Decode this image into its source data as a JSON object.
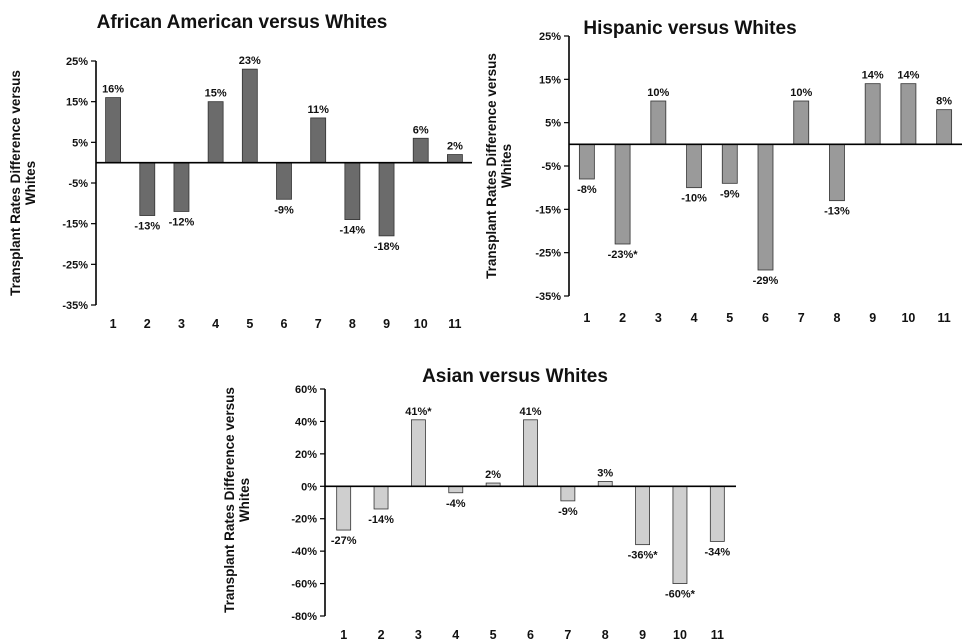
{
  "chart_data": [
    {
      "type": "bar",
      "title": "African American versus Whites",
      "ylabel": [
        "Transplant Rates Difference versus",
        "Whites"
      ],
      "xlabel": "",
      "categories": [
        "1",
        "2",
        "3",
        "4",
        "5",
        "6",
        "7",
        "8",
        "9",
        "10",
        "11"
      ],
      "values": [
        16,
        -13,
        -12,
        15,
        23,
        -9,
        11,
        -14,
        -18,
        6,
        2
      ],
      "labels": [
        "16%",
        "-13%",
        "-12%",
        "15%",
        "23%",
        "-9%",
        "11%",
        "-14%",
        "-18%",
        "6%",
        "2%"
      ],
      "ylim": [
        -35,
        25
      ],
      "yticks": [
        25,
        15,
        5,
        -5,
        -15,
        -25,
        -35
      ],
      "ytick_labels": [
        "25%",
        "15%",
        "5%",
        "-5%",
        "-15%",
        "-25%",
        "-35%"
      ],
      "bar_color": "#6b6b6b",
      "grid": false,
      "legend": "none"
    },
    {
      "type": "bar",
      "title": "Hispanic versus Whites",
      "ylabel": [
        "Transplant Rates Difference versus",
        "Whites"
      ],
      "xlabel": "",
      "categories": [
        "1",
        "2",
        "3",
        "4",
        "5",
        "6",
        "7",
        "8",
        "9",
        "10",
        "11"
      ],
      "values": [
        -8,
        -23,
        10,
        -10,
        -9,
        -29,
        10,
        -13,
        14,
        14,
        8
      ],
      "labels": [
        "-8%",
        "-23%*",
        "10%",
        "-10%",
        "-9%",
        "-29%",
        "10%",
        "-13%",
        "14%",
        "14%",
        "8%"
      ],
      "ylim": [
        -35,
        25
      ],
      "yticks": [
        25,
        15,
        5,
        -5,
        -15,
        -25,
        -35
      ],
      "ytick_labels": [
        "25%",
        "15%",
        "5%",
        "-5%",
        "-15%",
        "-25%",
        "-35%"
      ],
      "bar_color": "#9a9a9a",
      "grid": false,
      "legend": "none"
    },
    {
      "type": "bar",
      "title": "Asian versus Whites",
      "ylabel": [
        "Transplant Rates Difference versus",
        "Whites"
      ],
      "xlabel": "",
      "categories": [
        "1",
        "2",
        "3",
        "4",
        "5",
        "6",
        "7",
        "8",
        "9",
        "10",
        "11"
      ],
      "values": [
        -27,
        -14,
        41,
        -4,
        2,
        41,
        -9,
        3,
        -36,
        -60,
        -34
      ],
      "labels": [
        "-27%",
        "-14%",
        "41%*",
        "-4%",
        "2%",
        "41%",
        "-9%",
        "3%",
        "-36%*",
        "-60%*",
        "-34%"
      ],
      "ylim": [
        -80,
        60
      ],
      "yticks": [
        60,
        40,
        20,
        0,
        -20,
        -40,
        -60,
        -80
      ],
      "ytick_labels": [
        "60%",
        "40%",
        "20%",
        "0%",
        "-20%",
        "-40%",
        "-60%",
        "-80%"
      ],
      "bar_color": "#cfcfcf",
      "grid": false,
      "legend": "none"
    }
  ]
}
